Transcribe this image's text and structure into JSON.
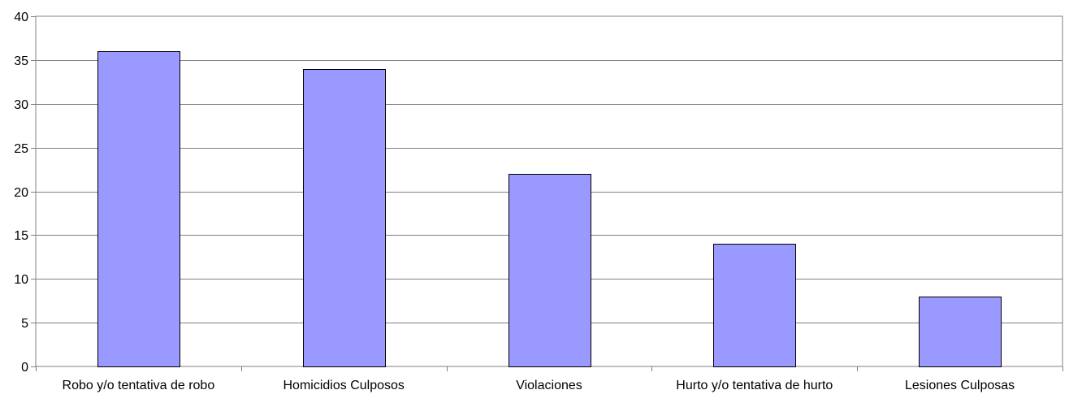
{
  "chart_data": {
    "type": "bar",
    "categories": [
      "Robo y/o tentativa de robo",
      "Homicidios Culposos",
      "Violaciones",
      "Hurto y/o tentativa de hurto",
      "Lesiones Culposas"
    ],
    "values": [
      36,
      34,
      22,
      14,
      8
    ],
    "ylim": [
      0,
      40
    ],
    "yticks": [
      "0",
      "5",
      "10",
      "15",
      "20",
      "25",
      "30",
      "35",
      "40"
    ],
    "grid": true,
    "legend": "none",
    "colors": {
      "bar_fill": "#9999ff",
      "bar_stroke": "#000000",
      "gridline": "#808080",
      "axis": "#808080"
    }
  }
}
